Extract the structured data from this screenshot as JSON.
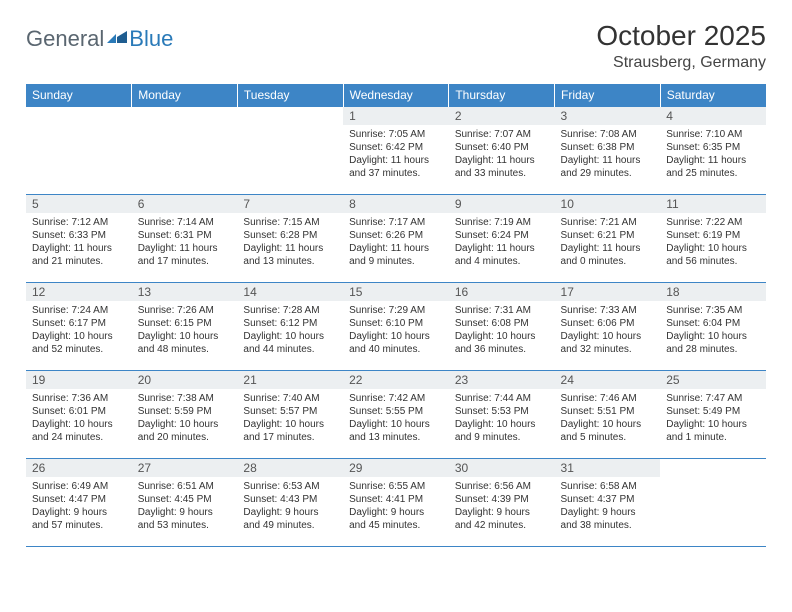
{
  "logo": {
    "general": "General",
    "blue": "Blue"
  },
  "title": "October 2025",
  "location": "Strausberg, Germany",
  "colors": {
    "header_bg": "#3d85c6",
    "header_fg": "#ffffff",
    "daynum_bg": "#eceff1",
    "border": "#3d85c6",
    "logo_gray": "#5a6670",
    "logo_blue": "#2a7ab8"
  },
  "weekdays": [
    "Sunday",
    "Monday",
    "Tuesday",
    "Wednesday",
    "Thursday",
    "Friday",
    "Saturday"
  ],
  "weeks": [
    [
      null,
      null,
      null,
      {
        "n": "1",
        "sr": "7:05 AM",
        "ss": "6:42 PM",
        "dl": "11 hours and 37 minutes."
      },
      {
        "n": "2",
        "sr": "7:07 AM",
        "ss": "6:40 PM",
        "dl": "11 hours and 33 minutes."
      },
      {
        "n": "3",
        "sr": "7:08 AM",
        "ss": "6:38 PM",
        "dl": "11 hours and 29 minutes."
      },
      {
        "n": "4",
        "sr": "7:10 AM",
        "ss": "6:35 PM",
        "dl": "11 hours and 25 minutes."
      }
    ],
    [
      {
        "n": "5",
        "sr": "7:12 AM",
        "ss": "6:33 PM",
        "dl": "11 hours and 21 minutes."
      },
      {
        "n": "6",
        "sr": "7:14 AM",
        "ss": "6:31 PM",
        "dl": "11 hours and 17 minutes."
      },
      {
        "n": "7",
        "sr": "7:15 AM",
        "ss": "6:28 PM",
        "dl": "11 hours and 13 minutes."
      },
      {
        "n": "8",
        "sr": "7:17 AM",
        "ss": "6:26 PM",
        "dl": "11 hours and 9 minutes."
      },
      {
        "n": "9",
        "sr": "7:19 AM",
        "ss": "6:24 PM",
        "dl": "11 hours and 4 minutes."
      },
      {
        "n": "10",
        "sr": "7:21 AM",
        "ss": "6:21 PM",
        "dl": "11 hours and 0 minutes."
      },
      {
        "n": "11",
        "sr": "7:22 AM",
        "ss": "6:19 PM",
        "dl": "10 hours and 56 minutes."
      }
    ],
    [
      {
        "n": "12",
        "sr": "7:24 AM",
        "ss": "6:17 PM",
        "dl": "10 hours and 52 minutes."
      },
      {
        "n": "13",
        "sr": "7:26 AM",
        "ss": "6:15 PM",
        "dl": "10 hours and 48 minutes."
      },
      {
        "n": "14",
        "sr": "7:28 AM",
        "ss": "6:12 PM",
        "dl": "10 hours and 44 minutes."
      },
      {
        "n": "15",
        "sr": "7:29 AM",
        "ss": "6:10 PM",
        "dl": "10 hours and 40 minutes."
      },
      {
        "n": "16",
        "sr": "7:31 AM",
        "ss": "6:08 PM",
        "dl": "10 hours and 36 minutes."
      },
      {
        "n": "17",
        "sr": "7:33 AM",
        "ss": "6:06 PM",
        "dl": "10 hours and 32 minutes."
      },
      {
        "n": "18",
        "sr": "7:35 AM",
        "ss": "6:04 PM",
        "dl": "10 hours and 28 minutes."
      }
    ],
    [
      {
        "n": "19",
        "sr": "7:36 AM",
        "ss": "6:01 PM",
        "dl": "10 hours and 24 minutes."
      },
      {
        "n": "20",
        "sr": "7:38 AM",
        "ss": "5:59 PM",
        "dl": "10 hours and 20 minutes."
      },
      {
        "n": "21",
        "sr": "7:40 AM",
        "ss": "5:57 PM",
        "dl": "10 hours and 17 minutes."
      },
      {
        "n": "22",
        "sr": "7:42 AM",
        "ss": "5:55 PM",
        "dl": "10 hours and 13 minutes."
      },
      {
        "n": "23",
        "sr": "7:44 AM",
        "ss": "5:53 PM",
        "dl": "10 hours and 9 minutes."
      },
      {
        "n": "24",
        "sr": "7:46 AM",
        "ss": "5:51 PM",
        "dl": "10 hours and 5 minutes."
      },
      {
        "n": "25",
        "sr": "7:47 AM",
        "ss": "5:49 PM",
        "dl": "10 hours and 1 minute."
      }
    ],
    [
      {
        "n": "26",
        "sr": "6:49 AM",
        "ss": "4:47 PM",
        "dl": "9 hours and 57 minutes."
      },
      {
        "n": "27",
        "sr": "6:51 AM",
        "ss": "4:45 PM",
        "dl": "9 hours and 53 minutes."
      },
      {
        "n": "28",
        "sr": "6:53 AM",
        "ss": "4:43 PM",
        "dl": "9 hours and 49 minutes."
      },
      {
        "n": "29",
        "sr": "6:55 AM",
        "ss": "4:41 PM",
        "dl": "9 hours and 45 minutes."
      },
      {
        "n": "30",
        "sr": "6:56 AM",
        "ss": "4:39 PM",
        "dl": "9 hours and 42 minutes."
      },
      {
        "n": "31",
        "sr": "6:58 AM",
        "ss": "4:37 PM",
        "dl": "9 hours and 38 minutes."
      },
      null
    ]
  ],
  "labels": {
    "sunrise": "Sunrise: ",
    "sunset": "Sunset: ",
    "daylight": "Daylight: "
  }
}
